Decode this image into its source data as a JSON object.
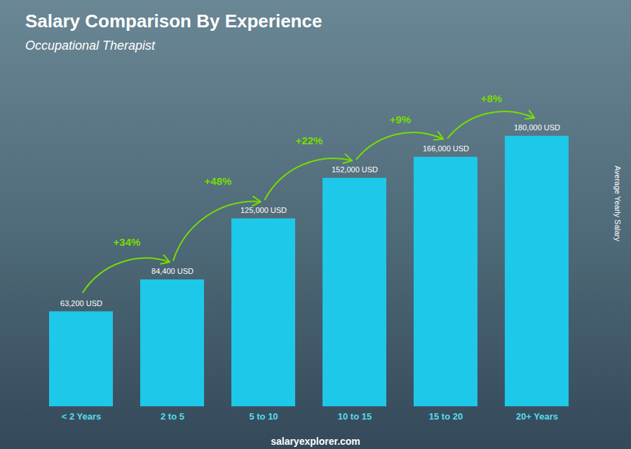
{
  "chart_data": {
    "type": "bar",
    "title": "Salary Comparison By Experience",
    "subtitle": "Occupational Therapist",
    "ylabel": "Average Yearly Salary",
    "categories": [
      "< 2 Years",
      "2 to 5",
      "5 to 10",
      "10 to 15",
      "15 to 20",
      "20+ Years"
    ],
    "values": [
      63200,
      84400,
      125000,
      152000,
      166000,
      180000
    ],
    "value_labels": [
      "63,200 USD",
      "84,400 USD",
      "125,000 USD",
      "152,000 USD",
      "166,000 USD",
      "180,000 USD"
    ],
    "data_labels": true,
    "annotations": [
      "+34%",
      "+48%",
      "+22%",
      "+9%",
      "+8%"
    ],
    "caption": "salaryexplorer.com",
    "color": "#1ec8e8",
    "ylim": [
      0,
      220000
    ],
    "yticks": [],
    "tick_labels": "x"
  }
}
